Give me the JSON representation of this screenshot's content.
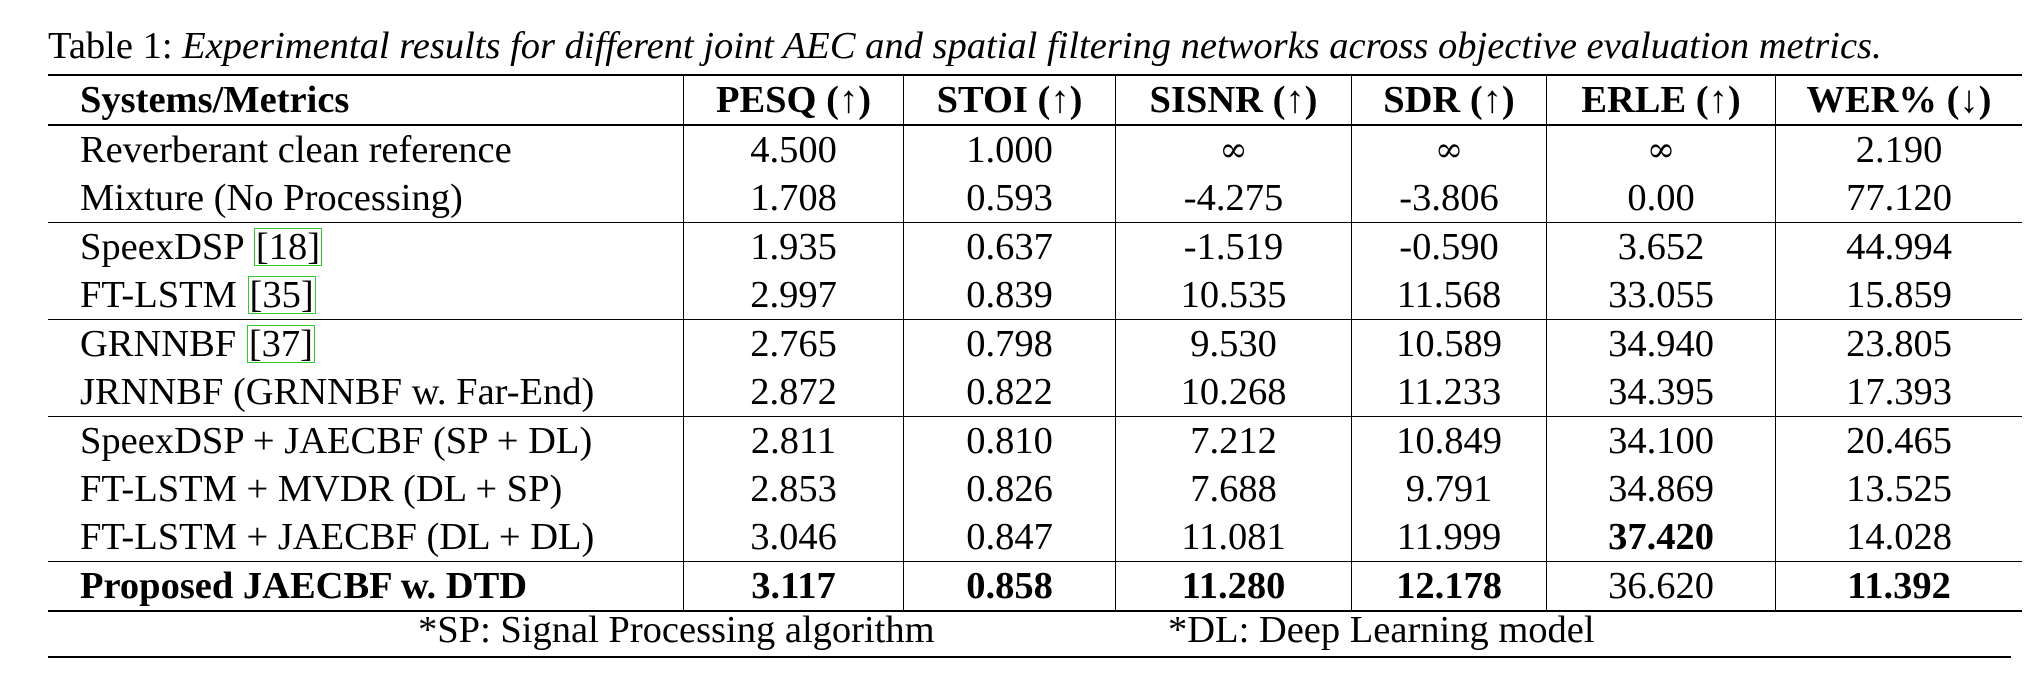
{
  "caption": {
    "label": "Table 1:",
    "text": "Experimental results for different joint AEC and spatial filtering networks across objective evaluation metrics."
  },
  "table": {
    "headers": [
      "Systems/Metrics",
      "PESQ (↑)",
      "STOI (↑)",
      "SISNR (↑)",
      "SDR (↑)",
      "ERLE (↑)",
      "WER% (↓)"
    ],
    "groups": [
      [
        {
          "system": "Reverberant clean reference",
          "values": [
            "4.500",
            "1.000",
            "∞",
            "∞",
            "∞",
            "2.190"
          ]
        },
        {
          "system": "Mixture (No Processing)",
          "values": [
            "1.708",
            "0.593",
            "-4.275",
            "-3.806",
            "0.00",
            "77.120"
          ]
        }
      ],
      [
        {
          "system": "SpeexDSP",
          "cite": "18",
          "values": [
            "1.935",
            "0.637",
            "-1.519",
            "-0.590",
            "3.652",
            "44.994"
          ]
        },
        {
          "system": "FT-LSTM",
          "cite": "35",
          "values": [
            "2.997",
            "0.839",
            "10.535",
            "11.568",
            "33.055",
            "15.859"
          ]
        }
      ],
      [
        {
          "system": "GRNNBF",
          "cite": "37",
          "values": [
            "2.765",
            "0.798",
            "9.530",
            "10.589",
            "34.940",
            "23.805"
          ]
        },
        {
          "system": "JRNNBF (GRNNBF w. Far-End)",
          "values": [
            "2.872",
            "0.822",
            "10.268",
            "11.233",
            "34.395",
            "17.393"
          ]
        }
      ],
      [
        {
          "system": "SpeexDSP + JAECBF (SP + DL)",
          "values": [
            "2.811",
            "0.810",
            "7.212",
            "10.849",
            "34.100",
            "20.465"
          ]
        },
        {
          "system": "FT-LSTM + MVDR (DL + SP)",
          "values": [
            "2.853",
            "0.826",
            "7.688",
            "9.791",
            "34.869",
            "13.525"
          ]
        },
        {
          "system": "FT-LSTM + JAECBF (DL + DL)",
          "values": [
            "3.046",
            "0.847",
            "11.081",
            "11.999",
            "37.420",
            "14.028"
          ],
          "bold": [
            false,
            false,
            false,
            false,
            true,
            false
          ]
        }
      ],
      [
        {
          "system": "Proposed JAECBF w. DTD",
          "system_bold": true,
          "values": [
            "3.117",
            "0.858",
            "11.280",
            "12.178",
            "36.620",
            "11.392"
          ],
          "bold": [
            true,
            true,
            true,
            true,
            false,
            true
          ]
        }
      ]
    ]
  },
  "footnotes": [
    "*SP: Signal Processing algorithm",
    "*DL: Deep Learning model"
  ]
}
